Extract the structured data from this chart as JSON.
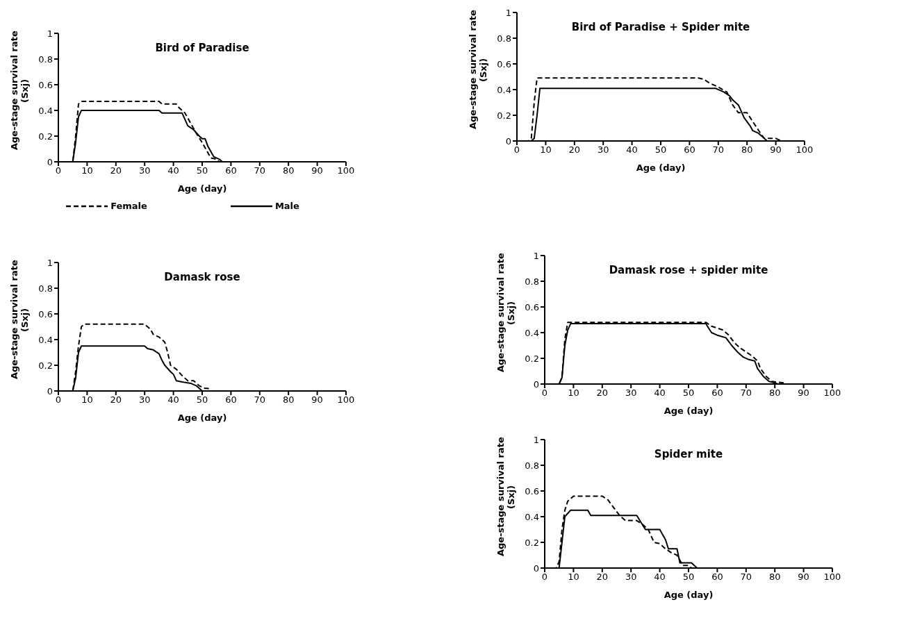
{
  "chart_data": [
    {
      "type": "line",
      "title": "Bird of Paradise",
      "xlabel": "Age (day)",
      "ylabel": "Age-stage survival rate (Sxj)",
      "xlim": [
        0,
        100
      ],
      "xticks": [
        0,
        10,
        20,
        30,
        40,
        50,
        60,
        70,
        80,
        90,
        100
      ],
      "ylim": [
        0,
        1
      ],
      "yticks": [
        0,
        0.2,
        0.4,
        0.6,
        0.8,
        1
      ],
      "grid": false,
      "legend": "bottom",
      "series": [
        {
          "name": "Female",
          "color": "#000000",
          "line_style": "dashed",
          "x": [
            0,
            5,
            6,
            7,
            8,
            35,
            36,
            41,
            42,
            44,
            46,
            48,
            50,
            52,
            53,
            55,
            56,
            100
          ],
          "values": [
            0,
            0,
            0.2,
            0.45,
            0.47,
            0.47,
            0.45,
            0.45,
            0.42,
            0.38,
            0.3,
            0.22,
            0.15,
            0.07,
            0.03,
            0.02,
            0,
            0
          ]
        },
        {
          "name": "Male",
          "color": "#000000",
          "line_style": "solid",
          "x": [
            0,
            5,
            6,
            7,
            8,
            35,
            36,
            43,
            44,
            45,
            47,
            49,
            50,
            51,
            52,
            54,
            56,
            57,
            100
          ],
          "values": [
            0,
            0,
            0.15,
            0.35,
            0.4,
            0.4,
            0.38,
            0.38,
            0.33,
            0.28,
            0.25,
            0.2,
            0.18,
            0.18,
            0.12,
            0.04,
            0.02,
            0,
            0
          ]
        }
      ]
    },
    {
      "type": "line",
      "title": "Bird of Paradise + Spider mite",
      "xlabel": "Age (day)",
      "ylabel": "Age-stage survival rate (Sxj)",
      "xlim": [
        0,
        100
      ],
      "xticks": [
        0,
        10,
        20,
        30,
        40,
        50,
        60,
        70,
        80,
        90,
        100
      ],
      "ylim": [
        0,
        1
      ],
      "yticks": [
        0,
        0.2,
        0.4,
        0.6,
        0.8,
        1
      ],
      "grid": false,
      "series": [
        {
          "color": "#000000",
          "line_style": "dashed",
          "x": [
            0,
            4,
            5,
            6,
            7,
            63,
            65,
            67,
            70,
            73,
            75,
            77,
            80,
            82,
            85,
            86,
            90,
            92,
            100
          ],
          "values": [
            0,
            0,
            0.02,
            0.3,
            0.49,
            0.49,
            0.48,
            0.45,
            0.42,
            0.38,
            0.28,
            0.22,
            0.22,
            0.15,
            0.05,
            0.02,
            0.02,
            0,
            0
          ]
        },
        {
          "color": "#000000",
          "line_style": "solid",
          "x": [
            0,
            5,
            6,
            7,
            8,
            69,
            72,
            74,
            75,
            77,
            79,
            81,
            82,
            84,
            86,
            87,
            100
          ],
          "values": [
            0,
            0,
            0.02,
            0.2,
            0.41,
            0.41,
            0.38,
            0.35,
            0.32,
            0.28,
            0.18,
            0.12,
            0.08,
            0.06,
            0.02,
            0,
            0
          ]
        }
      ]
    },
    {
      "type": "line",
      "title": "Damask rose",
      "xlabel": "Age (day)",
      "ylabel": "Age-stage survival rate (Sxj)",
      "xlim": [
        0,
        100
      ],
      "xticks": [
        0,
        10,
        20,
        30,
        40,
        50,
        60,
        70,
        80,
        90,
        100
      ],
      "ylim": [
        0,
        1
      ],
      "yticks": [
        0,
        0.2,
        0.4,
        0.6,
        0.8,
        1
      ],
      "grid": false,
      "series": [
        {
          "color": "#000000",
          "line_style": "dashed",
          "x": [
            0,
            5,
            6,
            7,
            8,
            9,
            30,
            32,
            33,
            35,
            37,
            38,
            39,
            41,
            43,
            45,
            47,
            49,
            51,
            52,
            53,
            100
          ],
          "values": [
            0,
            0,
            0.15,
            0.35,
            0.5,
            0.52,
            0.52,
            0.48,
            0.44,
            0.42,
            0.38,
            0.3,
            0.2,
            0.17,
            0.12,
            0.08,
            0.08,
            0.04,
            0.02,
            0.02,
            0,
            0
          ]
        },
        {
          "color": "#000000",
          "line_style": "solid",
          "x": [
            0,
            5,
            6,
            7,
            8,
            30,
            31,
            33,
            35,
            36,
            37,
            39,
            40,
            41,
            43,
            46,
            48,
            50,
            100
          ],
          "values": [
            0,
            0,
            0.1,
            0.3,
            0.35,
            0.35,
            0.33,
            0.32,
            0.29,
            0.24,
            0.2,
            0.15,
            0.13,
            0.08,
            0.07,
            0.06,
            0.04,
            0,
            0
          ]
        }
      ]
    },
    {
      "type": "line",
      "title": "Damask rose + spider mite",
      "xlabel": "Age (day)",
      "ylabel": "Age-stage survival rate (Sxj)",
      "xlim": [
        0,
        100
      ],
      "xticks": [
        0,
        10,
        20,
        30,
        40,
        50,
        60,
        70,
        80,
        90,
        100
      ],
      "ylim": [
        0,
        1
      ],
      "yticks": [
        0,
        0.2,
        0.4,
        0.6,
        0.8,
        1
      ],
      "grid": false,
      "series": [
        {
          "color": "#000000",
          "line_style": "dashed",
          "x": [
            0,
            5,
            6,
            7,
            8,
            56,
            58,
            62,
            64,
            66,
            68,
            70,
            72,
            74,
            75,
            77,
            79,
            83,
            84,
            100
          ],
          "values": [
            0,
            0,
            0.05,
            0.35,
            0.48,
            0.48,
            0.45,
            0.42,
            0.38,
            0.32,
            0.28,
            0.25,
            0.22,
            0.18,
            0.12,
            0.06,
            0.02,
            0.01,
            0,
            0
          ]
        },
        {
          "color": "#000000",
          "line_style": "solid",
          "x": [
            0,
            5,
            6,
            7,
            8,
            9,
            56,
            58,
            60,
            63,
            65,
            67,
            69,
            71,
            73,
            74,
            76,
            78,
            80,
            81,
            100
          ],
          "values": [
            0,
            0,
            0.05,
            0.3,
            0.42,
            0.47,
            0.47,
            0.4,
            0.38,
            0.36,
            0.3,
            0.25,
            0.21,
            0.19,
            0.18,
            0.12,
            0.06,
            0.02,
            0.01,
            0,
            0
          ]
        }
      ]
    },
    {
      "type": "line",
      "title": "Spider mite",
      "xlabel": "Age (day)",
      "ylabel": "Age-stage survival rate (Sxj)",
      "xlim": [
        0,
        100
      ],
      "xticks": [
        0,
        10,
        20,
        30,
        40,
        50,
        60,
        70,
        80,
        90,
        100
      ],
      "ylim": [
        0,
        1
      ],
      "yticks": [
        0,
        0.2,
        0.4,
        0.6,
        0.8,
        1
      ],
      "grid": false,
      "series": [
        {
          "color": "#000000",
          "line_style": "dashed",
          "x": [
            0,
            4,
            5,
            6,
            7,
            8,
            10,
            20,
            22,
            24,
            26,
            28,
            32,
            34,
            36,
            38,
            40,
            42,
            44,
            46,
            48,
            50,
            51,
            100
          ],
          "values": [
            0,
            0,
            0.05,
            0.3,
            0.45,
            0.52,
            0.56,
            0.56,
            0.53,
            0.47,
            0.41,
            0.37,
            0.37,
            0.34,
            0.3,
            0.2,
            0.19,
            0.15,
            0.12,
            0.1,
            0.02,
            0.02,
            0,
            0
          ]
        },
        {
          "color": "#000000",
          "line_style": "solid",
          "x": [
            0,
            5,
            6,
            7,
            9,
            15,
            16,
            32,
            35,
            40,
            42,
            43,
            46,
            47,
            51,
            53,
            100
          ],
          "values": [
            0,
            0,
            0.2,
            0.4,
            0.45,
            0.45,
            0.41,
            0.41,
            0.3,
            0.3,
            0.22,
            0.15,
            0.15,
            0.04,
            0.04,
            0,
            0
          ]
        }
      ]
    }
  ]
}
